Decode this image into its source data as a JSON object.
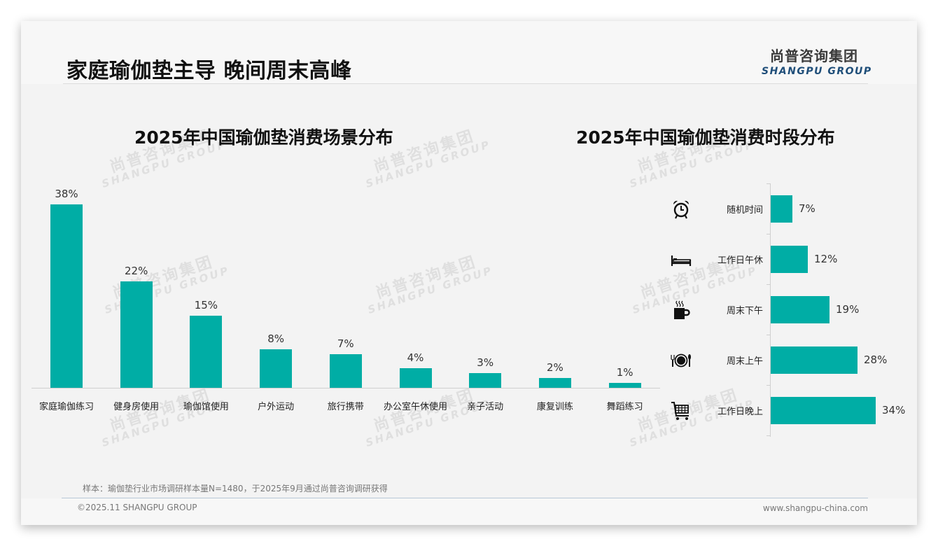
{
  "header": {
    "title": "家庭瑜伽垫主导 晚间周末高峰",
    "logo_cn": "尚普咨询集团",
    "logo_en": "SHANGPU GROUP"
  },
  "watermark": {
    "cn": "尚普咨询集团",
    "en": "SHANGPU GROUP"
  },
  "colors": {
    "bar": "#00ada5",
    "logo_en": "#1f4e79",
    "background": "#f3f3f3"
  },
  "chart_data": [
    {
      "type": "bar",
      "title": "2025年中国瑜伽垫消费场景分布",
      "categories": [
        "家庭瑜伽练习",
        "健身房使用",
        "瑜伽馆使用",
        "户外运动",
        "旅行携带",
        "办公室午休使用",
        "亲子活动",
        "康复训练",
        "舞蹈练习"
      ],
      "values": [
        38,
        22,
        15,
        8,
        7,
        4,
        3,
        2,
        1
      ],
      "value_labels": [
        "38%",
        "22%",
        "15%",
        "8%",
        "7%",
        "4%",
        "3%",
        "2%",
        "1%"
      ],
      "unit": "%",
      "xlabel": "",
      "ylabel": "",
      "ylim": [
        0,
        38
      ],
      "grid": false,
      "legend": "none"
    },
    {
      "type": "bar",
      "orientation": "horizontal",
      "title": "2025年中国瑜伽垫消费时段分布",
      "categories": [
        "随机时间",
        "工作日午休",
        "周末下午",
        "周末上午",
        "工作日晚上"
      ],
      "values": [
        7,
        12,
        19,
        28,
        34
      ],
      "value_labels": [
        "7%",
        "12%",
        "19%",
        "28%",
        "34%"
      ],
      "icons": [
        "alarm-clock-icon",
        "bed-icon",
        "hot-coffee-mug-icon",
        "plate-cutlery-icon",
        "shopping-cart-icon"
      ],
      "unit": "%",
      "xlabel": "",
      "ylabel": "",
      "xlim": [
        0,
        34
      ],
      "grid": false,
      "legend": "none"
    }
  ],
  "footer": {
    "note": "样本：瑜伽垫行业市场调研样本量N=1480，于2025年9月通过尚普咨询调研获得",
    "copyright": "©2025.11 SHANGPU GROUP",
    "website": "www.shangpu-china.com"
  }
}
